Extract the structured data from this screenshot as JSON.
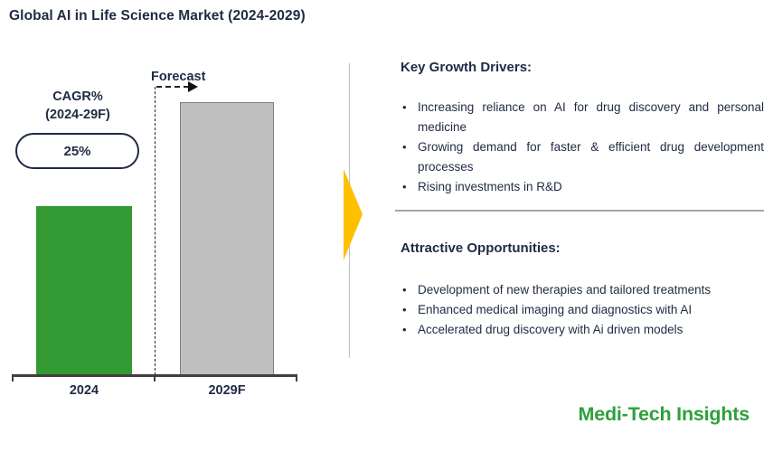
{
  "title": "Global AI in Life Science Market (2024-2029)",
  "chart_data": {
    "type": "bar",
    "title": "Global AI in Life Science Market (2024-2029)",
    "categories": [
      "2024",
      "2029F"
    ],
    "values": [
      62,
      100
    ],
    "xlabel": "",
    "ylabel": "",
    "axis_values_shown": false,
    "grid": false,
    "bar_colors": [
      "#339933",
      "#BFBFBF"
    ],
    "annotations": {
      "cagr_line1": "CAGR%",
      "cagr_line2": "(2024-29F)",
      "cagr_value": "25%",
      "forecast_label": "Forecast"
    }
  },
  "right_panel": {
    "sections": [
      {
        "heading": "Key Growth Drivers:",
        "bullets": [
          "Increasing reliance on AI for drug discovery and personal medicine",
          "Growing demand for faster & efficient drug development processes",
          "Rising investments in R&D"
        ]
      },
      {
        "heading": "Attractive Opportunities:",
        "bullets": [
          "Development of new therapies and tailored treatments",
          "Enhanced medical imaging and diagnostics with AI",
          "Accelerated drug discovery with Ai driven models"
        ]
      }
    ],
    "logo_text": "Medi-Tech Insights"
  },
  "colors": {
    "navy_text": "#1F2A44",
    "green_bar": "#339933",
    "gray_bar": "#BFBFBF",
    "accent_yellow": "#FFC000",
    "logo_green": "#2FA03C",
    "axis": "#404040",
    "divider": "#A6A6A6"
  }
}
